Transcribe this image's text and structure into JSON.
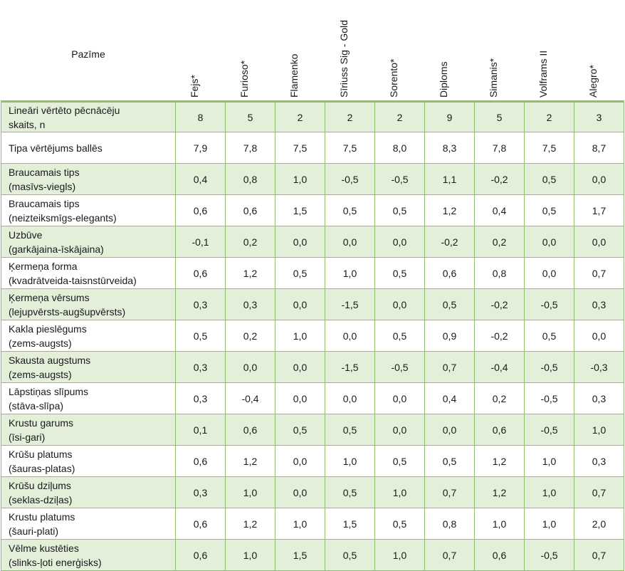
{
  "header": {
    "label": "Pazīme",
    "columns": [
      "Fejs*",
      "Furioso*",
      "Flamenko",
      "Sīriuss Sig - Gold",
      "Sorento*",
      "Diploms",
      "Simanis*",
      "Volframs II",
      "Alegro*"
    ]
  },
  "rows": [
    {
      "label1": "Lineāri vērtēto pēcnācēju",
      "label2": "skaits, n",
      "values": [
        "8",
        "5",
        "2",
        "2",
        "2",
        "9",
        "5",
        "2",
        "3"
      ]
    },
    {
      "label1": "Tipa vērtējums ballēs",
      "label2": "",
      "values": [
        "7,9",
        "7,8",
        "7,5",
        "7,5",
        "8,0",
        "8,3",
        "7,8",
        "7,5",
        "8,7"
      ]
    },
    {
      "label1": "Braucamais tips",
      "label2": "(masīvs-viegls)",
      "values": [
        "0,4",
        "0,8",
        "1,0",
        "-0,5",
        "-0,5",
        "1,1",
        "-0,2",
        "0,5",
        "0,0"
      ]
    },
    {
      "label1": "Braucamais tips",
      "label2": "(neizteiksmīgs-elegants)",
      "values": [
        "0,6",
        "0,6",
        "1,5",
        "0,5",
        "0,5",
        "1,2",
        "0,4",
        "0,5",
        "1,7"
      ]
    },
    {
      "label1": "Uzbūve",
      "label2": "(garkājaina-īskājaina)",
      "values": [
        "-0,1",
        "0,2",
        "0,0",
        "0,0",
        "0,0",
        "-0,2",
        "0,2",
        "0,0",
        "0,0"
      ]
    },
    {
      "label1": "Ķermeņa forma",
      "label2": "(kvadrātveida-taisnstūrveida)",
      "values": [
        "0,6",
        "1,2",
        "0,5",
        "1,0",
        "0,5",
        "0,6",
        "0,8",
        "0,0",
        "0,7"
      ]
    },
    {
      "label1": "Ķermeņa vērsums",
      "label2": "(lejupvērsts-augšupvērsts)",
      "values": [
        "0,3",
        "0,3",
        "0,0",
        "-1,5",
        "0,0",
        "0,5",
        "-0,2",
        "-0,5",
        "0,3"
      ]
    },
    {
      "label1": "Kakla pieslēgums",
      "label2": "(zems-augsts)",
      "values": [
        "0,5",
        "0,2",
        "1,0",
        "0,0",
        "0,5",
        "0,9",
        "-0,2",
        "0,5",
        "0,0"
      ]
    },
    {
      "label1": "Skausta augstums",
      "label2": "(zems-augsts)",
      "values": [
        "0,3",
        "0,0",
        "0,0",
        "-1,5",
        "-0,5",
        "0,7",
        "-0,4",
        "-0,5",
        "-0,3"
      ]
    },
    {
      "label1": "Lāpstiņas slīpums",
      "label2": "(stāva-slīpa)",
      "values": [
        "0,3",
        "-0,4",
        "0,0",
        "0,0",
        "0,0",
        "0,4",
        "0,2",
        "-0,5",
        "0,3"
      ]
    },
    {
      "label1": "Krustu garums",
      "label2": "(īsi-gari)",
      "values": [
        "0,1",
        "0,6",
        "0,5",
        "0,5",
        "0,0",
        "0,0",
        "0,6",
        "-0,5",
        "1,0"
      ]
    },
    {
      "label1": "Krūšu platums",
      "label2": "(šauras-platas)",
      "values": [
        "0,6",
        "1,2",
        "0,0",
        "1,0",
        "0,5",
        "0,5",
        "1,2",
        "1,0",
        "0,3"
      ]
    },
    {
      "label1": "Krūšu dziļums",
      "label2": "(seklas-dziļas)",
      "values": [
        "0,3",
        "1,0",
        "0,0",
        "0,5",
        "1,0",
        "0,7",
        "1,2",
        "1,0",
        "0,7"
      ]
    },
    {
      "label1": "Krustu platums",
      "label2": "(šauri-plati)",
      "values": [
        "0,6",
        "1,2",
        "1,0",
        "1,5",
        "0,5",
        "0,8",
        "1,0",
        "1,0",
        "2,0"
      ]
    },
    {
      "label1": "Vēlme kustēties",
      "label2": "(slinks-ļoti enerģisks)",
      "values": [
        "0,6",
        "1,0",
        "1,5",
        "0,5",
        "1,0",
        "0,7",
        "0,6",
        "-0,5",
        "0,7"
      ]
    }
  ],
  "colors": {
    "border": "#8cc06a",
    "shade": "#e3efd9"
  }
}
